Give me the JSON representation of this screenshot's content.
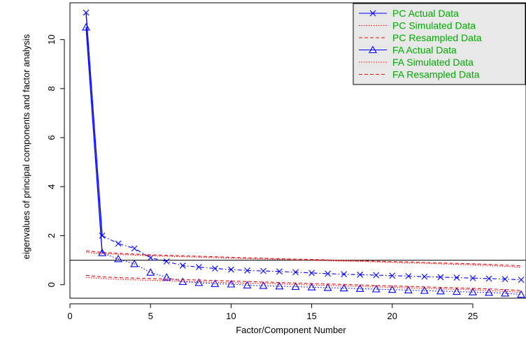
{
  "chart_data": {
    "type": "line",
    "title": "",
    "xlabel": "Factor/Component Number",
    "ylabel": "eigenvalues of principal components and factor analysis",
    "xlim": [
      0,
      28.3
    ],
    "ylim": [
      -0.55,
      11.5
    ],
    "x_ticks": [
      0,
      5,
      10,
      15,
      20,
      25
    ],
    "y_ticks": [
      0,
      2,
      4,
      6,
      8,
      10
    ],
    "reference_line_y": 1,
    "grid": false,
    "legend_position": "top-right",
    "colors": {
      "actual": "#0000ff",
      "simulated": "#ff0000",
      "legend_text": "#00aa00",
      "axes": "#000000",
      "legend_bg": "#e8e8e8"
    },
    "x": [
      1,
      2,
      3,
      4,
      5,
      6,
      7,
      8,
      9,
      10,
      11,
      12,
      13,
      14,
      15,
      16,
      17,
      18,
      19,
      20,
      21,
      22,
      23,
      24,
      25,
      26,
      27,
      28
    ],
    "series": [
      {
        "name": "PC Actual Data",
        "values": [
          11.1,
          2.0,
          1.68,
          1.48,
          1.1,
          0.95,
          0.78,
          0.72,
          0.66,
          0.62,
          0.58,
          0.56,
          0.54,
          0.51,
          0.48,
          0.45,
          0.43,
          0.41,
          0.39,
          0.37,
          0.35,
          0.33,
          0.31,
          0.29,
          0.27,
          0.25,
          0.23,
          0.2
        ]
      },
      {
        "name": "PC Simulated Data",
        "values": [
          1.32,
          1.27,
          1.24,
          1.21,
          1.18,
          1.16,
          1.14,
          1.12,
          1.1,
          1.08,
          1.06,
          1.05,
          1.03,
          1.01,
          1.0,
          0.98,
          0.96,
          0.95,
          0.93,
          0.91,
          0.89,
          0.87,
          0.85,
          0.83,
          0.81,
          0.78,
          0.75,
          0.71
        ]
      },
      {
        "name": "PC Resampled Data",
        "values": [
          1.38,
          1.32,
          1.28,
          1.25,
          1.22,
          1.2,
          1.18,
          1.16,
          1.14,
          1.12,
          1.1,
          1.08,
          1.06,
          1.04,
          1.03,
          1.01,
          0.99,
          0.98,
          0.96,
          0.94,
          0.93,
          0.91,
          0.89,
          0.87,
          0.85,
          0.83,
          0.8,
          0.77
        ]
      },
      {
        "name": "FA Actual Data",
        "values": [
          10.5,
          1.3,
          1.05,
          0.85,
          0.5,
          0.3,
          0.12,
          0.08,
          0.04,
          0.02,
          -0.02,
          -0.04,
          -0.06,
          -0.08,
          -0.1,
          -0.12,
          -0.14,
          -0.16,
          -0.18,
          -0.2,
          -0.22,
          -0.24,
          -0.26,
          -0.28,
          -0.3,
          -0.32,
          -0.35,
          -0.4
        ]
      },
      {
        "name": "FA Simulated Data",
        "values": [
          0.3,
          0.25,
          0.22,
          0.2,
          0.18,
          0.16,
          0.14,
          0.12,
          0.1,
          0.08,
          0.06,
          0.05,
          0.03,
          0.01,
          -0.01,
          -0.03,
          -0.05,
          -0.07,
          -0.09,
          -0.11,
          -0.13,
          -0.15,
          -0.17,
          -0.19,
          -0.21,
          -0.24,
          -0.27,
          -0.31
        ]
      },
      {
        "name": "FA Resampled Data",
        "values": [
          0.38,
          0.32,
          0.29,
          0.27,
          0.25,
          0.23,
          0.21,
          0.19,
          0.17,
          0.15,
          0.13,
          0.11,
          0.09,
          0.07,
          0.05,
          0.03,
          0.01,
          -0.01,
          -0.03,
          -0.05,
          -0.07,
          -0.09,
          -0.11,
          -0.13,
          -0.15,
          -0.17,
          -0.2,
          -0.24
        ]
      }
    ]
  }
}
